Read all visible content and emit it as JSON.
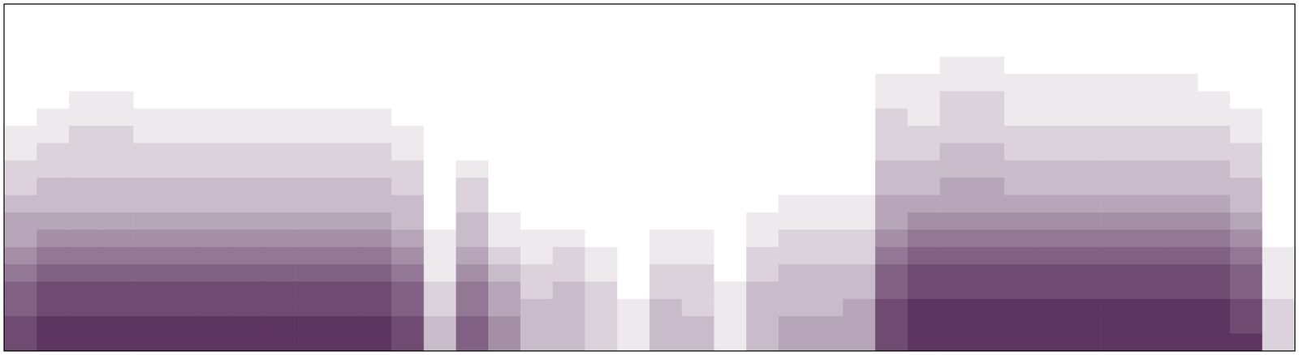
{
  "chart_data": {
    "type": "heatmap",
    "tick_labels": false,
    "xlim": [
      0,
      40
    ],
    "ylim": [
      0,
      20
    ],
    "zlim": [
      0,
      10
    ],
    "color": "#4b1e4f",
    "values": [
      [
        8,
        8,
        7,
        7,
        6,
        5,
        4,
        4,
        3,
        2,
        2,
        1,
        1,
        0,
        0,
        0,
        0,
        0,
        0,
        0
      ],
      [
        9,
        9,
        8,
        8,
        7,
        6,
        5,
        4,
        3,
        3,
        2,
        2,
        1,
        1,
        0,
        0,
        0,
        0,
        0,
        0
      ],
      [
        9,
        9,
        8,
        8,
        7,
        6,
        5,
        4,
        3,
        3,
        2,
        2,
        2,
        1,
        1,
        0,
        0,
        0,
        0,
        0
      ],
      [
        9,
        9,
        8,
        8,
        7,
        6,
        5,
        4,
        3,
        3,
        2,
        2,
        2,
        1,
        1,
        0,
        0,
        0,
        0,
        0
      ],
      [
        9,
        9,
        8,
        8,
        7,
        6,
        5,
        4,
        3,
        3,
        2,
        2,
        1,
        1,
        0,
        0,
        0,
        0,
        0,
        0
      ],
      [
        9,
        9,
        8,
        8,
        7,
        6,
        5,
        4,
        3,
        3,
        2,
        2,
        1,
        1,
        0,
        0,
        0,
        0,
        0,
        0
      ],
      [
        9,
        9,
        8,
        8,
        7,
        6,
        5,
        4,
        3,
        3,
        2,
        2,
        1,
        1,
        0,
        0,
        0,
        0,
        0,
        0
      ],
      [
        9,
        9,
        8,
        8,
        7,
        6,
        5,
        4,
        3,
        3,
        2,
        2,
        1,
        1,
        0,
        0,
        0,
        0,
        0,
        0
      ],
      [
        9,
        9,
        8,
        8,
        7,
        6,
        5,
        4,
        3,
        3,
        2,
        2,
        1,
        1,
        0,
        0,
        0,
        0,
        0,
        0
      ],
      [
        9,
        9,
        8,
        8,
        7,
        6,
        5,
        4,
        3,
        3,
        2,
        2,
        1,
        1,
        0,
        0,
        0,
        0,
        0,
        0
      ],
      [
        9,
        9,
        8,
        8,
        7,
        6,
        5,
        4,
        3,
        3,
        2,
        2,
        1,
        1,
        0,
        0,
        0,
        0,
        0,
        0
      ],
      [
        9,
        9,
        8,
        8,
        7,
        6,
        5,
        4,
        3,
        3,
        2,
        2,
        1,
        1,
        0,
        0,
        0,
        0,
        0,
        0
      ],
      [
        8,
        8,
        7,
        7,
        6,
        5,
        4,
        3,
        3,
        2,
        2,
        1,
        1,
        0,
        0,
        0,
        0,
        0,
        0,
        0
      ],
      [
        3,
        3,
        2,
        2,
        1,
        1,
        1,
        0,
        0,
        0,
        0,
        0,
        0,
        0,
        0,
        0,
        0,
        0,
        0,
        0
      ],
      [
        7,
        7,
        6,
        6,
        5,
        4,
        3,
        3,
        2,
        2,
        1,
        0,
        0,
        0,
        0,
        0,
        0,
        0,
        0,
        0
      ],
      [
        5,
        5,
        4,
        4,
        3,
        2,
        1,
        1,
        0,
        0,
        0,
        0,
        0,
        0,
        0,
        0,
        0,
        0,
        0,
        0
      ],
      [
        3,
        3,
        3,
        2,
        2,
        1,
        1,
        0,
        0,
        0,
        0,
        0,
        0,
        0,
        0,
        0,
        0,
        0,
        0,
        0
      ],
      [
        3,
        3,
        3,
        3,
        2,
        2,
        1,
        0,
        0,
        0,
        0,
        0,
        0,
        0,
        0,
        0,
        0,
        0,
        0,
        0
      ],
      [
        2,
        2,
        2,
        2,
        1,
        1,
        0,
        0,
        0,
        0,
        0,
        0,
        0,
        0,
        0,
        0,
        0,
        0,
        0,
        0
      ],
      [
        1,
        1,
        1,
        0,
        0,
        0,
        0,
        0,
        0,
        0,
        0,
        0,
        0,
        0,
        0,
        0,
        0,
        0,
        0,
        0
      ],
      [
        3,
        3,
        3,
        2,
        2,
        1,
        1,
        0,
        0,
        0,
        0,
        0,
        0,
        0,
        0,
        0,
        0,
        0,
        0,
        0
      ],
      [
        3,
        3,
        2,
        2,
        2,
        1,
        1,
        0,
        0,
        0,
        0,
        0,
        0,
        0,
        0,
        0,
        0,
        0,
        0,
        0
      ],
      [
        1,
        1,
        1,
        1,
        0,
        0,
        0,
        0,
        0,
        0,
        0,
        0,
        0,
        0,
        0,
        0,
        0,
        0,
        0,
        0
      ],
      [
        3,
        3,
        3,
        3,
        2,
        2,
        1,
        1,
        0,
        0,
        0,
        0,
        0,
        0,
        0,
        0,
        0,
        0,
        0,
        0
      ],
      [
        4,
        4,
        3,
        3,
        3,
        2,
        2,
        1,
        1,
        0,
        0,
        0,
        0,
        0,
        0,
        0,
        0,
        0,
        0,
        0
      ],
      [
        4,
        4,
        3,
        3,
        3,
        2,
        2,
        1,
        1,
        0,
        0,
        0,
        0,
        0,
        0,
        0,
        0,
        0,
        0,
        0
      ],
      [
        4,
        4,
        4,
        3,
        3,
        2,
        2,
        1,
        1,
        0,
        0,
        0,
        0,
        0,
        0,
        0,
        0,
        0,
        0,
        0
      ],
      [
        8,
        8,
        8,
        7,
        7,
        6,
        5,
        4,
        4,
        3,
        3,
        2,
        2,
        2,
        1,
        1,
        0,
        0,
        0,
        0
      ],
      [
        9,
        9,
        9,
        8,
        8,
        7,
        6,
        5,
        4,
        3,
        3,
        2,
        2,
        1,
        1,
        1,
        0,
        0,
        0,
        0
      ],
      [
        9,
        9,
        9,
        8,
        8,
        7,
        6,
        5,
        4,
        4,
        3,
        3,
        2,
        2,
        2,
        1,
        1,
        0,
        0,
        0
      ],
      [
        9,
        9,
        9,
        8,
        8,
        7,
        6,
        5,
        4,
        4,
        3,
        3,
        2,
        2,
        2,
        1,
        1,
        0,
        0,
        0
      ],
      [
        9,
        9,
        9,
        8,
        8,
        7,
        6,
        5,
        4,
        3,
        3,
        2,
        2,
        1,
        1,
        1,
        0,
        0,
        0,
        0
      ],
      [
        9,
        9,
        9,
        8,
        8,
        7,
        6,
        5,
        4,
        3,
        3,
        2,
        2,
        1,
        1,
        1,
        0,
        0,
        0,
        0
      ],
      [
        9,
        9,
        9,
        8,
        8,
        7,
        6,
        5,
        4,
        3,
        3,
        2,
        2,
        1,
        1,
        1,
        0,
        0,
        0,
        0
      ],
      [
        9,
        9,
        9,
        8,
        8,
        7,
        6,
        5,
        4,
        3,
        3,
        2,
        2,
        1,
        1,
        1,
        0,
        0,
        0,
        0
      ],
      [
        9,
        9,
        9,
        8,
        8,
        7,
        6,
        5,
        4,
        3,
        3,
        2,
        2,
        1,
        1,
        1,
        0,
        0,
        0,
        0
      ],
      [
        9,
        9,
        9,
        8,
        8,
        7,
        6,
        5,
        4,
        3,
        3,
        2,
        2,
        1,
        1,
        1,
        0,
        0,
        0,
        0
      ],
      [
        9,
        9,
        9,
        8,
        8,
        7,
        6,
        5,
        4,
        3,
        3,
        2,
        2,
        1,
        1,
        0,
        0,
        0,
        0,
        0
      ],
      [
        9,
        8,
        8,
        7,
        7,
        6,
        5,
        4,
        3,
        3,
        2,
        2,
        1,
        1,
        0,
        0,
        0,
        0,
        0,
        0
      ],
      [
        2,
        2,
        2,
        1,
        1,
        1,
        0,
        0,
        0,
        0,
        0,
        0,
        0,
        0,
        0,
        0,
        0,
        0,
        0,
        0
      ]
    ]
  }
}
